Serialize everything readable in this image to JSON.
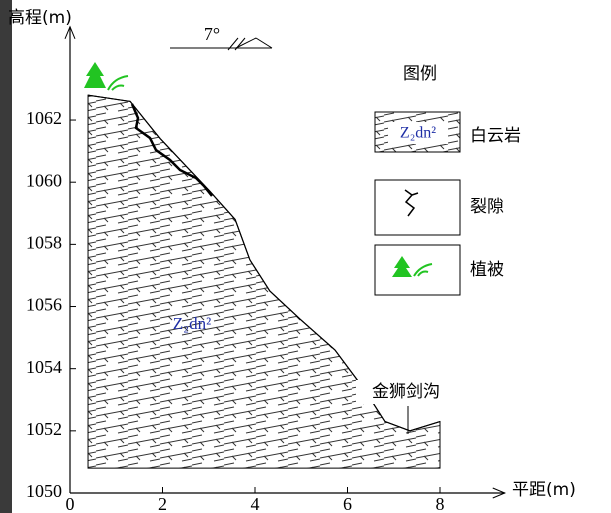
{
  "chart_data": {
    "type": "area",
    "y_label": "高程(m)",
    "x_label": "平距(m)",
    "x": [
      0.39,
      1.3,
      1.95,
      3.03,
      3.57,
      3.89,
      4.32,
      4.97,
      5.73,
      6.38,
      6.81,
      7.35,
      8.0
    ],
    "values": [
      1062.8,
      1062.6,
      1061.4,
      1059.7,
      1058.8,
      1057.5,
      1056.5,
      1055.6,
      1054.6,
      1053.3,
      1052.3,
      1052.0,
      1052.3
    ],
    "base": 1050.8,
    "color": "#000000",
    "xlim": [
      0,
      9.4
    ],
    "ylim": [
      1050,
      1065
    ],
    "xticks": [
      0,
      2,
      4,
      6,
      8
    ],
    "yticks": [
      1050,
      1052,
      1054,
      1056,
      1058,
      1060,
      1062
    ],
    "annotations": {
      "dip": "7°",
      "rock": "Z₂dn²",
      "gully": "金狮剑沟"
    },
    "legend": {
      "title": "图例",
      "items": [
        {
          "symbol": "Z₂dn²",
          "name": "白云岩"
        },
        {
          "name": "裂隙"
        },
        {
          "name": "植被"
        }
      ]
    }
  }
}
